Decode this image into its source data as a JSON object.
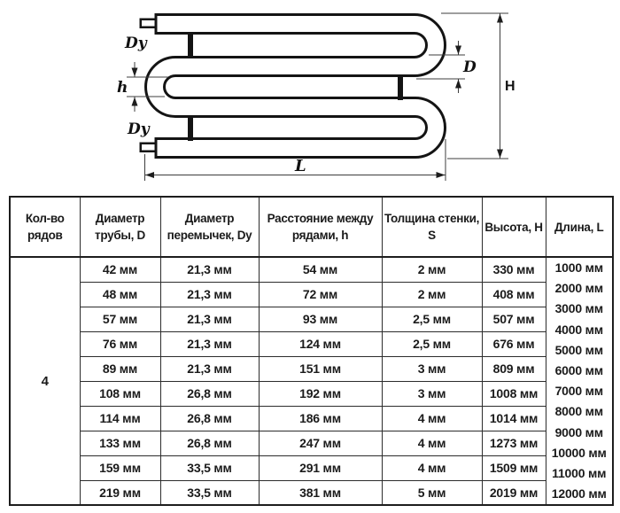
{
  "diagram": {
    "labels": {
      "dy_top": "Dy",
      "dy_bottom": "Dy",
      "h": "h",
      "d": "D",
      "height": "H",
      "length": "L"
    }
  },
  "table": {
    "headers": [
      "Кол-во рядов",
      "Диаметр трубы, D",
      "Диаметр перемычек, Dy",
      "Расстояние между рядами, h",
      "Толщина стенки, S",
      "Высота, H",
      "Длина, L"
    ],
    "row_count": "4",
    "rows": [
      [
        "42 мм",
        "21,3 мм",
        "54 мм",
        "2 мм",
        "330 мм"
      ],
      [
        "48 мм",
        "21,3 мм",
        "72 мм",
        "2 мм",
        "408 мм"
      ],
      [
        "57 мм",
        "21,3 мм",
        "93 мм",
        "2,5 мм",
        "507 мм"
      ],
      [
        "76 мм",
        "21,3 мм",
        "124 мм",
        "2,5 мм",
        "676 мм"
      ],
      [
        "89 мм",
        "21,3 мм",
        "151 мм",
        "3 мм",
        "809 мм"
      ],
      [
        "108 мм",
        "26,8 мм",
        "192 мм",
        "3 мм",
        "1008 мм"
      ],
      [
        "114 мм",
        "26,8 мм",
        "186 мм",
        "4 мм",
        "1014 мм"
      ],
      [
        "133 мм",
        "26,8 мм",
        "247 мм",
        "4 мм",
        "1273 мм"
      ],
      [
        "159 мм",
        "33,5 мм",
        "291 мм",
        "4 мм",
        "1509 мм"
      ],
      [
        "219 мм",
        "33,5 мм",
        "381 мм",
        "5 мм",
        "2019 мм"
      ]
    ],
    "lengths": [
      "1000 мм",
      "2000 мм",
      "3000 мм",
      "4000 мм",
      "5000 мм",
      "6000 мм",
      "7000 мм",
      "8000 мм",
      "9000 мм",
      "10000 мм",
      "11000 мм",
      "12000 мм"
    ]
  }
}
